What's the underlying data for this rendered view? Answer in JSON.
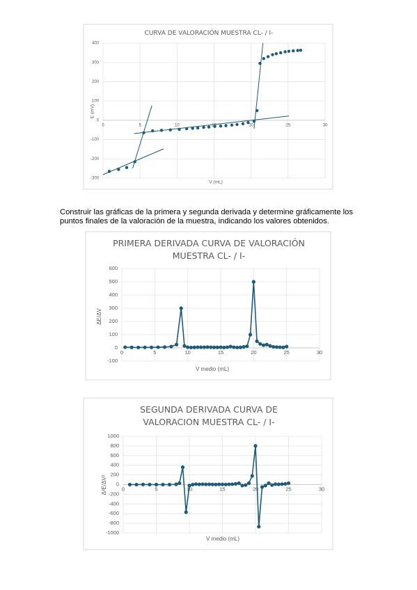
{
  "chart_data": [
    {
      "type": "scatter",
      "title": "CURVA DE VALORACIÓN MUESTRA CL- / I-",
      "x_label": "V (mL)",
      "y_label": "E (mV)",
      "color": "#1d5b79",
      "grid": true,
      "x": [
        0.85,
        2.1,
        3.2,
        4.3,
        5.5,
        6.7,
        7.9,
        9.1,
        10.3,
        11.3,
        12.1,
        12.8,
        13.6,
        14.3,
        15.1,
        15.9,
        16.6,
        17.4,
        18.1,
        18.9,
        19.6,
        20.4,
        20.8,
        21.2,
        21.7,
        22.3,
        22.9,
        23.4,
        24,
        24.6,
        25.1,
        25.7,
        26.3,
        26.7
      ],
      "values": [
        -265,
        -255,
        -245,
        -215,
        -65,
        -55,
        -52,
        -50,
        -47,
        -44,
        -42,
        -40,
        -37,
        -35,
        -32,
        -30,
        -28,
        -25,
        -22,
        -18,
        -12,
        -5,
        50,
        295,
        320,
        330,
        340,
        345,
        350,
        355,
        358,
        360,
        362,
        363
      ],
      "tangent_lines": [
        {
          "x": [
            0,
            8.2
          ],
          "y": [
            -282,
            -148
          ]
        },
        {
          "x": [
            4,
            6.6
          ],
          "y": [
            -249,
            76
          ]
        },
        {
          "x": [
            4.2,
            25.1
          ],
          "y": [
            -69,
            22
          ]
        },
        {
          "x": [
            20.4,
            21.6
          ],
          "y": [
            -43,
            400
          ]
        }
      ],
      "xlim": [
        0,
        30
      ],
      "xticks": [
        0,
        5,
        10,
        15,
        20,
        25,
        30
      ],
      "ylim": [
        -300,
        400
      ],
      "yticks": [
        -300,
        -200,
        -100,
        0,
        100,
        200,
        300,
        400
      ]
    },
    {
      "type": "line",
      "title": "PRIMERA DERIVADA CURVA DE VALORACIÓN MUESTRA CL- / I-",
      "x_label": "V medio (mL)",
      "y_label": "ΔE/ΔV",
      "color": "#1d5b79",
      "grid": true,
      "x": [
        0.5,
        1.5,
        2.5,
        3.5,
        4.5,
        5.5,
        6.5,
        7.5,
        8.3,
        9,
        9.5,
        10,
        10.5,
        11,
        11.5,
        12,
        12.5,
        13,
        13.5,
        14,
        14.5,
        15,
        15.5,
        16,
        16.5,
        17,
        17.5,
        18,
        18.5,
        19,
        19.5,
        20,
        20.5,
        21,
        21.5,
        22,
        22.5,
        23,
        23.5,
        24,
        24.5,
        25
      ],
      "values": [
        5,
        4,
        3,
        4,
        4,
        5,
        6,
        10,
        25,
        300,
        15,
        5,
        3,
        4,
        5,
        5,
        5,
        6,
        5,
        4,
        4,
        5,
        3,
        5,
        10,
        5,
        3,
        4,
        8,
        12,
        100,
        500,
        50,
        30,
        20,
        25,
        15,
        8,
        6,
        5,
        4,
        10
      ],
      "xlim": [
        0,
        30
      ],
      "xticks": [
        0,
        5,
        10,
        15,
        20,
        25,
        30
      ],
      "ylim": [
        -100,
        600
      ],
      "yticks": [
        -100,
        0,
        100,
        200,
        300,
        400,
        500,
        600
      ]
    },
    {
      "type": "line",
      "title": "SEGUNDA DERIVADA CURVA DE VALORACION MUESTRA CL- / I-",
      "x_label": "V medio (mL)",
      "y_label": "Δ²E/ΔV²",
      "color": "#1d5b79",
      "grid": true,
      "x": [
        1,
        2,
        3,
        4,
        5,
        6,
        7,
        8,
        8.5,
        9,
        9.5,
        10,
        10.5,
        11,
        11.5,
        12,
        12.5,
        13,
        13.5,
        14,
        14.5,
        15,
        15.5,
        16,
        16.5,
        17,
        17.5,
        18,
        18.5,
        19,
        19.5,
        20,
        20.5,
        21,
        21.5,
        22,
        22.5,
        23,
        23.5,
        24,
        24.5,
        25
      ],
      "values": [
        0,
        0,
        2,
        0,
        0,
        0,
        0,
        5,
        30,
        360,
        -570,
        -20,
        0,
        10,
        5,
        8,
        5,
        6,
        4,
        3,
        5,
        4,
        3,
        6,
        8,
        15,
        30,
        -20,
        -10,
        30,
        180,
        800,
        -870,
        -50,
        -20,
        30,
        -10,
        10,
        5,
        10,
        15,
        30
      ],
      "xlim": [
        0,
        30
      ],
      "xticks": [
        0,
        5,
        10,
        15,
        20,
        25,
        30
      ],
      "ylim": [
        -1000,
        1000
      ],
      "yticks": [
        -1000,
        -800,
        -600,
        -400,
        -200,
        0,
        200,
        400,
        600,
        800,
        1000
      ]
    }
  ],
  "document": {
    "paragraph": "Construir las gráficas de la primera y segunda derivada y determine gráficamente los puntos finales de la valoración de la muestra, indicando los valores obtenidos."
  }
}
